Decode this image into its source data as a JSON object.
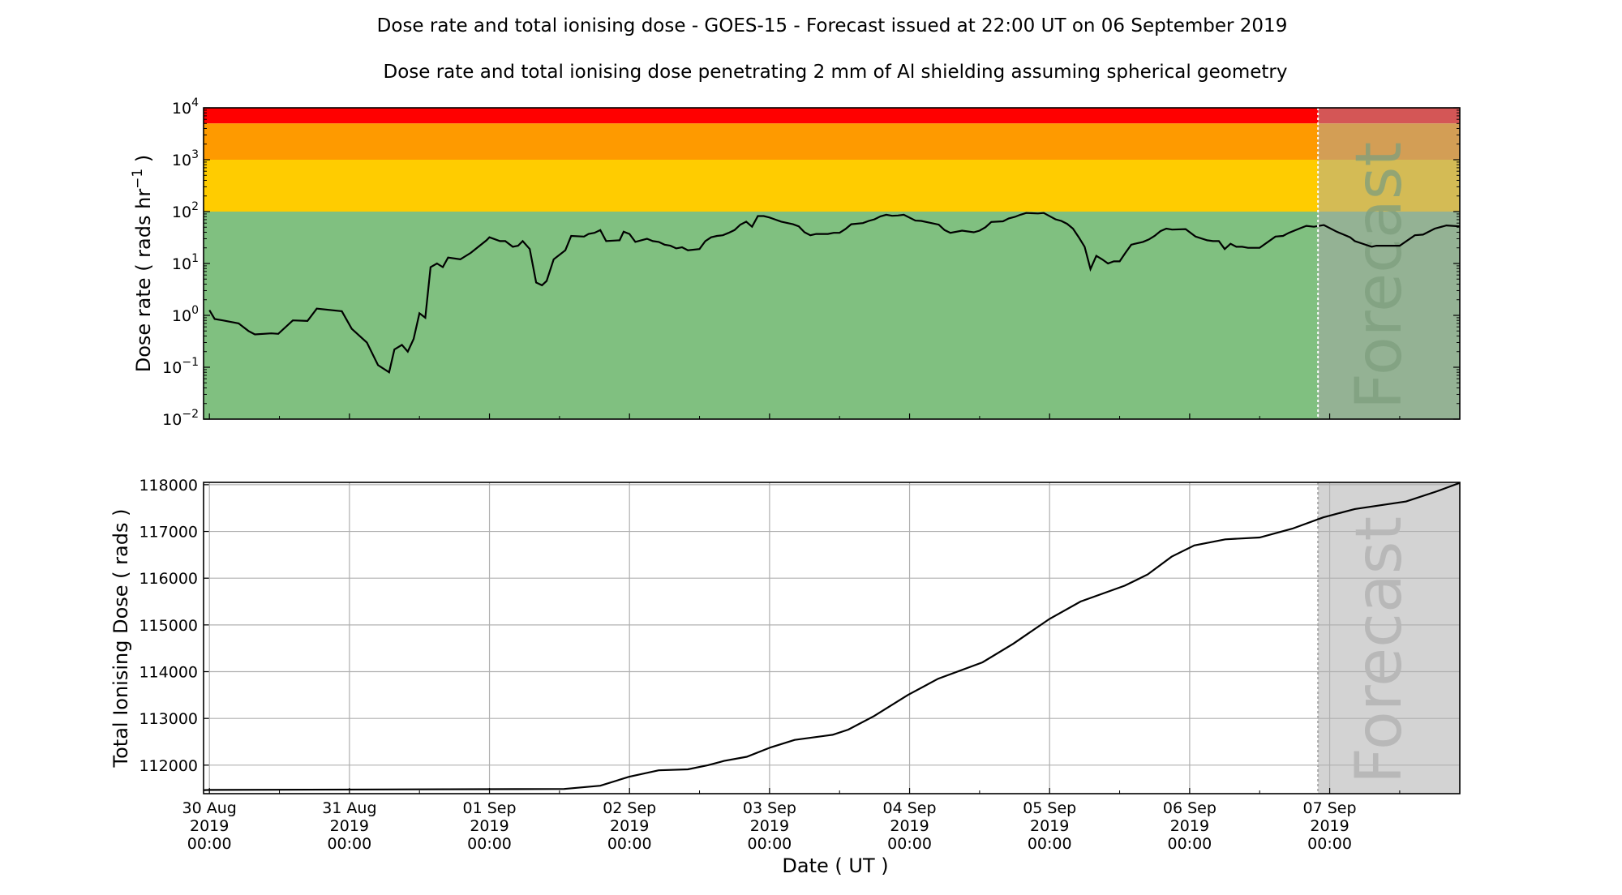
{
  "chart_data": [
    {
      "type": "line",
      "title": "Dose rate and total ionising dose - GOES-15 - Forecast issued at 22:00 UT on 06 September 2019",
      "subtitle": "Dose rate and total ionising dose penetrating 2 mm of Al shielding assuming spherical geometry",
      "ylabel": "Dose rate ( rads hr",
      "ylabel_exp": "−1",
      "ylabel_end": " )",
      "yscale": "log",
      "ylim": [
        0.01,
        10000
      ],
      "yticks": [
        {
          "base": "10",
          "exp": "4",
          "v": 10000
        },
        {
          "base": "10",
          "exp": "3",
          "v": 1000
        },
        {
          "base": "10",
          "exp": "2",
          "v": 100
        },
        {
          "base": "10",
          "exp": "1",
          "v": 10
        },
        {
          "base": "10",
          "exp": "0",
          "v": 1
        },
        {
          "base": "10",
          "exp": "−1",
          "v": 0.1
        },
        {
          "base": "10",
          "exp": "−2",
          "v": 0.01
        }
      ],
      "x_units": "hours since 30 Aug 2019 00:00 UT",
      "xlim": [
        -1,
        214.3
      ],
      "forecast_start_hour": 190,
      "forecast_label": "Forecast",
      "bands": [
        {
          "name": "red",
          "from": 5000,
          "to": 10000,
          "color": "#ff0000",
          "forecast_color": "#d45656"
        },
        {
          "name": "orange",
          "from": 1000,
          "to": 5000,
          "color": "#fe9a00",
          "forecast_color": "#d39e55"
        },
        {
          "name": "yellow",
          "from": 100,
          "to": 1000,
          "color": "#ffcc00",
          "forecast_color": "#d4bb55"
        },
        {
          "name": "green",
          "from": 0.01,
          "to": 100,
          "color": "#80c080",
          "forecast_color": "#94b294"
        }
      ],
      "series": [
        {
          "name": "Dose rate",
          "x": [
            0,
            0.9,
            2.3,
            5,
            6.7,
            7.8,
            10.6,
            11.8,
            14.3,
            16.8,
            18.4,
            22.7,
            24.4,
            27,
            28.9,
            30.8,
            31.7,
            33,
            34,
            35,
            36,
            37,
            37.9,
            39,
            40,
            40.9,
            43,
            44.8,
            47.5,
            48,
            49.8,
            50.7,
            52,
            52.9,
            53.7,
            54.9,
            56,
            57,
            57.8,
            59,
            61,
            62,
            64.2,
            65,
            66,
            67,
            68,
            70.3,
            71,
            72,
            73,
            74,
            75,
            76,
            77,
            78,
            79,
            80,
            81,
            82,
            84,
            85,
            86,
            87,
            88,
            89,
            90,
            91,
            92,
            93,
            94,
            95,
            96,
            97,
            98,
            100,
            101,
            102,
            103,
            104,
            106,
            107,
            108,
            109,
            110,
            112,
            113,
            114,
            115,
            116,
            117,
            118,
            119,
            121,
            122,
            125,
            126,
            127,
            129,
            131,
            132,
            133,
            134,
            136,
            137,
            138,
            139,
            140,
            142,
            143,
            145,
            146,
            147,
            148,
            149,
            150,
            151,
            152,
            153,
            154,
            155,
            156,
            157,
            158,
            160,
            161,
            162,
            163,
            164,
            165,
            167.3,
            169,
            171,
            172,
            173,
            174,
            175,
            176,
            177,
            178,
            179,
            180,
            182.7,
            184,
            185,
            187,
            188,
            189.3,
            190.2,
            191,
            193.2,
            194.4,
            195.5,
            196.3,
            199.2,
            200,
            204,
            206.6,
            208,
            210,
            212,
            214.3
          ],
          "y": [
            1.26,
            0.85,
            0.8,
            0.7,
            0.5,
            0.43,
            0.45,
            0.44,
            0.8,
            0.78,
            1.35,
            1.2,
            0.55,
            0.3,
            0.11,
            0.08,
            0.22,
            0.27,
            0.2,
            0.35,
            1.1,
            0.9,
            8.5,
            10,
            8.5,
            13,
            12,
            16,
            28,
            32,
            27,
            27,
            21,
            22,
            27,
            19,
            4.3,
            3.8,
            4.6,
            12,
            18,
            34,
            33,
            37,
            39,
            44,
            27,
            28,
            41,
            37,
            26,
            28,
            30,
            27,
            26,
            23,
            22,
            19.5,
            20.5,
            18,
            19,
            27,
            32,
            34,
            35,
            39,
            44,
            56,
            64,
            51,
            82,
            82,
            77,
            70,
            64,
            57,
            52,
            40,
            35,
            37,
            37,
            39,
            39,
            46,
            57,
            60,
            66,
            71,
            81,
            87,
            83,
            84,
            87,
            67,
            66,
            56,
            44,
            39,
            43,
            40,
            43,
            50,
            63,
            65,
            74,
            79,
            87,
            94,
            92,
            94,
            71,
            66,
            58,
            47,
            32,
            21,
            7.8,
            14,
            12,
            10,
            11,
            11,
            16,
            23,
            26,
            29,
            34,
            42,
            47,
            45,
            46,
            33,
            28,
            27,
            27,
            19,
            24,
            21,
            21,
            20,
            20,
            20,
            33,
            34,
            39,
            48,
            53,
            51,
            53,
            55,
            41,
            36,
            32,
            27,
            21,
            22,
            22,
            35,
            36,
            47,
            54,
            52
          ]
        }
      ]
    },
    {
      "type": "line",
      "ylabel": "Total Ionising Dose ( rads )",
      "xlabel": "Date ( UT )",
      "ylim": [
        111390,
        118050
      ],
      "yticks": [
        "118000",
        "117000",
        "116000",
        "115000",
        "114000",
        "113000",
        "112000"
      ],
      "grid": true,
      "x_units": "hours since 30 Aug 2019 00:00 UT",
      "xlim": [
        -1,
        214.3
      ],
      "forecast_start_hour": 190,
      "forecast_label": "Forecast",
      "xticks": [
        {
          "date": "30 Aug",
          "year": "2019",
          "time": "00:00"
        },
        {
          "date": "31 Aug",
          "year": "2019",
          "time": "00:00"
        },
        {
          "date": "01 Sep",
          "year": "2019",
          "time": "00:00"
        },
        {
          "date": "02 Sep",
          "year": "2019",
          "time": "00:00"
        },
        {
          "date": "03 Sep",
          "year": "2019",
          "time": "00:00"
        },
        {
          "date": "04 Sep",
          "year": "2019",
          "time": "00:00"
        },
        {
          "date": "05 Sep",
          "year": "2019",
          "time": "00:00"
        },
        {
          "date": "06 Sep",
          "year": "2019",
          "time": "00:00"
        },
        {
          "date": "07 Sep",
          "year": "2019",
          "time": "00:00"
        }
      ],
      "series": [
        {
          "name": "Total ionising dose",
          "x": [
            -1,
            0,
            30,
            60.8,
            67,
            71.9,
            77,
            82,
            85.5,
            88.2,
            92.1,
            96.2,
            100.3,
            106.8,
            109.5,
            113.9,
            119.7,
            124.9,
            132.5,
            137.8,
            144,
            149.3,
            156.9,
            160.8,
            164.9,
            168.8,
            174.1,
            180,
            185.6,
            190.9,
            196.3,
            205.1,
            210.4,
            214.3
          ],
          "y": [
            111465,
            111469,
            111480,
            111490,
            111560,
            111750,
            111890,
            111910,
            112000,
            112090,
            112180,
            112380,
            112540,
            112650,
            112760,
            113050,
            113500,
            113850,
            114200,
            114600,
            115130,
            115500,
            115840,
            116080,
            116460,
            116700,
            116830,
            116870,
            117060,
            117300,
            117480,
            117640,
            117860,
            118040
          ]
        }
      ]
    }
  ]
}
